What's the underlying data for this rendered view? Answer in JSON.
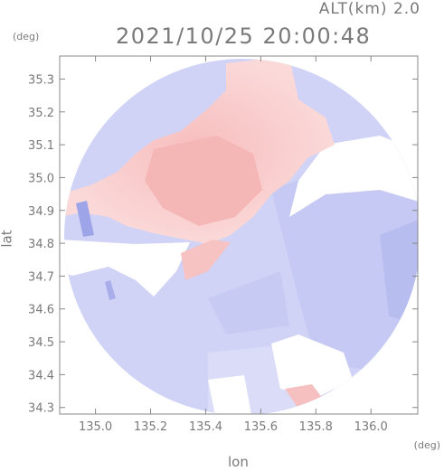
{
  "header": {
    "altitude": "ALT(km) 2.0",
    "datetime": "2021/10/25 20:00:48"
  },
  "chart_data": {
    "type": "heatmap",
    "title": "2021/10/25 20:00:48",
    "xlabel": "lon",
    "ylabel": "lat",
    "xunit": "(deg)",
    "yunit": "(deg)",
    "xlim": [
      134.87,
      136.17
    ],
    "ylim": [
      34.28,
      35.37
    ],
    "xticks": [
      "135.0",
      "135.2",
      "135.4",
      "135.6",
      "135.8",
      "136.0"
    ],
    "xtick_values": [
      135.0,
      135.2,
      135.4,
      135.6,
      135.8,
      136.0
    ],
    "yticks": [
      "34.3",
      "34.4",
      "34.5",
      "34.6",
      "34.7",
      "34.8",
      "34.9",
      "35.0",
      "35.1",
      "35.2",
      "35.3"
    ],
    "ytick_values": [
      34.3,
      34.4,
      34.5,
      34.6,
      34.7,
      34.8,
      34.9,
      35.0,
      35.1,
      35.2,
      35.3
    ],
    "grid": false,
    "colors": {
      "positive": "#f9c9c9",
      "negative": "#cdd0f5",
      "strong_negative": "#a9aeea",
      "no_data": "#ffffff"
    }
  }
}
